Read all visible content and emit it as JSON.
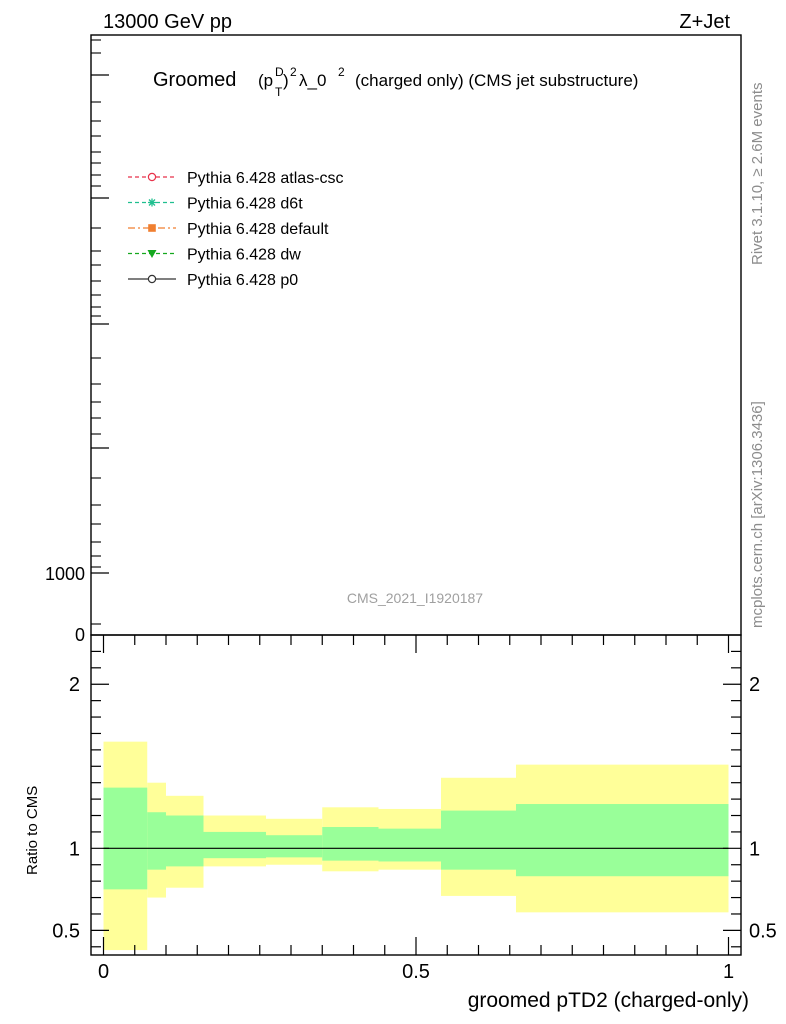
{
  "header": {
    "energy_label": "13000 GeV pp",
    "process_label": "Z+Jet"
  },
  "side_labels": {
    "rivet": "Rivet 3.1.10, ≥ 2.6M events",
    "mcplots": "mcplots.cern.ch [arXiv:1306.3436]"
  },
  "chart_data": [
    {
      "type": "line",
      "panel": "main",
      "title": {
        "prefix": "Groomed",
        "suffix": "λ_0",
        "rest": "(charged only) (CMS jet substructure)"
      },
      "watermark": "CMS_2021_I1920187",
      "y_tick_labels": [
        "1000",
        "0"
      ],
      "legend": {
        "placement": "top-left",
        "entries": [
          {
            "label": "Pythia 6.428 atlas-csc",
            "color": "#e8324b",
            "marker": "open-circle",
            "dash": "dashed"
          },
          {
            "label": "Pythia 6.428 d6t",
            "color": "#1fbf8f",
            "marker": "asterisk",
            "dash": "dashed"
          },
          {
            "label": "Pythia 6.428 default",
            "color": "#f07f30",
            "marker": "filled-square",
            "dash": "dashdot"
          },
          {
            "label": "Pythia 6.428 dw",
            "color": "#14a81e",
            "marker": "filled-triangle-down",
            "dash": "dashed"
          },
          {
            "label": "Pythia 6.428 p0",
            "color": "#333333",
            "marker": "open-circle",
            "dash": "solid"
          }
        ]
      }
    },
    {
      "type": "area",
      "panel": "ratio",
      "ylabel": "Ratio to CMS",
      "xlabel": "groomed pTD2 (charged-only)",
      "xlim": [
        -0.02,
        1.02
      ],
      "ylim": [
        0.35,
        2.3
      ],
      "x_ticks": [
        0,
        0.5,
        1
      ],
      "x_tick_labels": [
        "0",
        "0.5",
        "1"
      ],
      "y_ticks": [
        0.5,
        1,
        2
      ],
      "y_tick_labels": [
        "0.5",
        "1",
        "2"
      ],
      "bin_edges": [
        0,
        0.07,
        0.1,
        0.16,
        0.26,
        0.35,
        0.44,
        0.54,
        0.66,
        1.0
      ],
      "green_band": {
        "low": [
          0.75,
          0.87,
          0.89,
          0.94,
          0.945,
          0.925,
          0.92,
          0.87,
          0.83,
          0.83
        ],
        "high": [
          1.37,
          1.22,
          1.2,
          1.1,
          1.08,
          1.13,
          1.12,
          1.23,
          1.27,
          1.27
        ]
      },
      "yellow_band": {
        "low": [
          0.38,
          0.7,
          0.76,
          0.89,
          0.9,
          0.86,
          0.87,
          0.71,
          0.61,
          0.61
        ],
        "high": [
          1.65,
          1.4,
          1.32,
          1.2,
          1.18,
          1.25,
          1.24,
          1.43,
          1.51,
          1.51
        ]
      },
      "reference_line": 1.0
    }
  ]
}
